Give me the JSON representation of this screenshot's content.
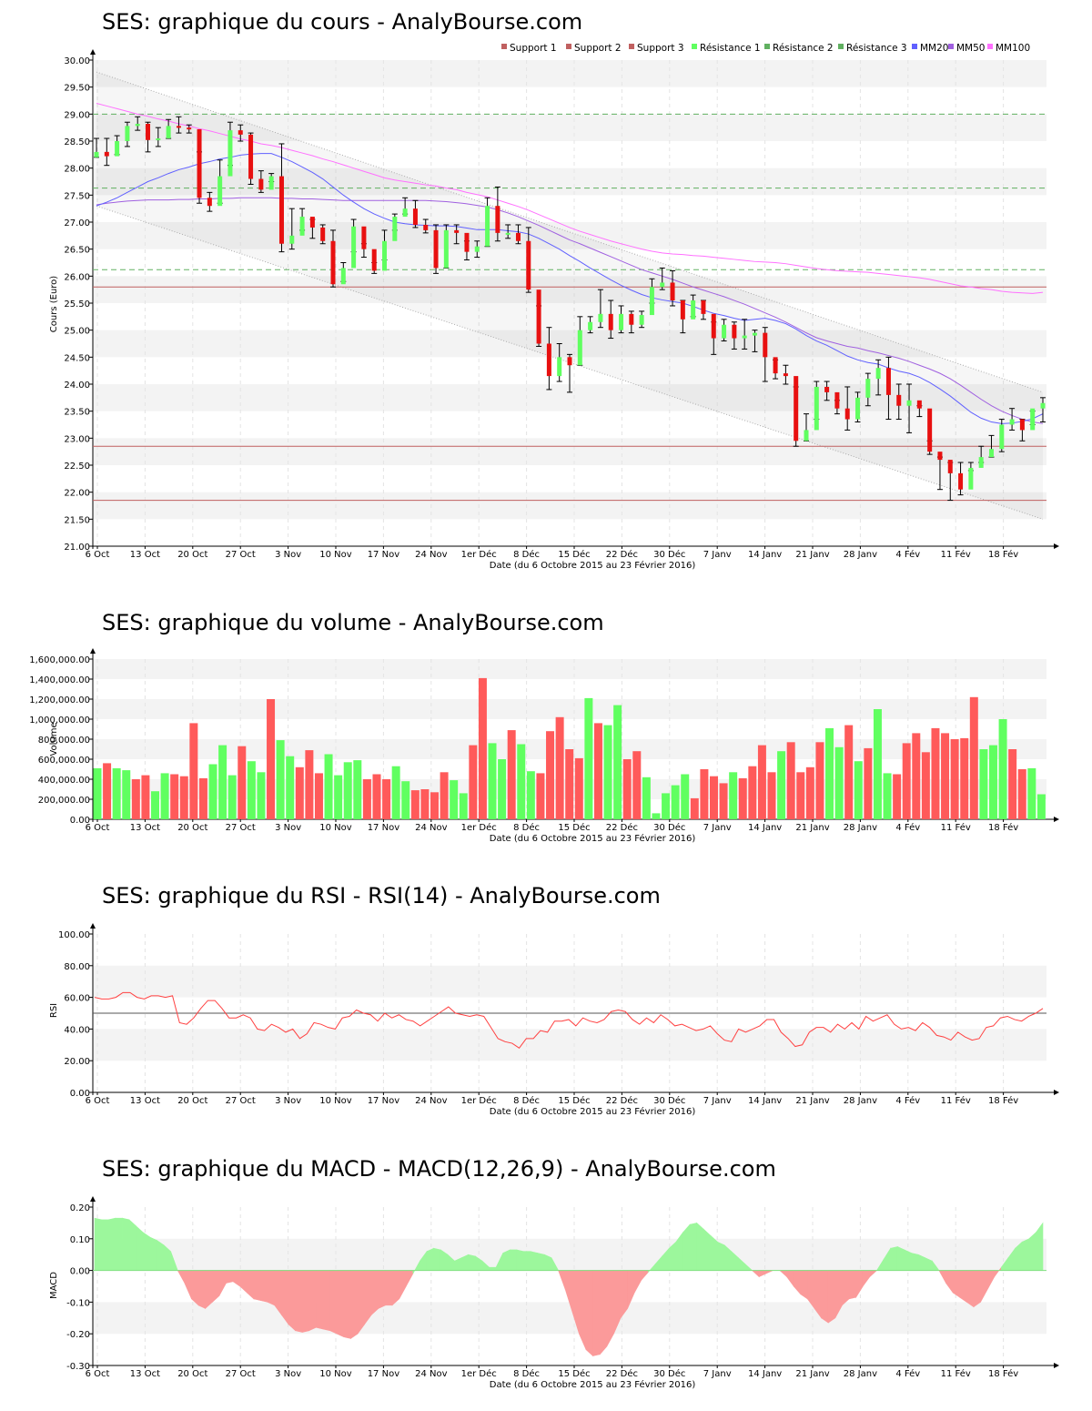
{
  "x_ticks": [
    "6 Oct",
    "13 Oct",
    "20 Oct",
    "27 Oct",
    "3 Nov",
    "10 Nov",
    "17 Nov",
    "24 Nov",
    "1er Déc",
    "8 Déc",
    "15 Déc",
    "22 Déc",
    "30 Déc",
    "7 Janv",
    "14 Janv",
    "21 Janv",
    "28 Janv",
    "4 Fév",
    "11 Fév",
    "18 Fév"
  ],
  "x_label": "Date (du 6 Octobre 2015 au 23 Février 2016)",
  "colors": {
    "up": "#60ff60",
    "down": "#ff5a5a",
    "support": "#c06060",
    "resistance": "#60b060",
    "mm20": "#6060ff",
    "mm50": "#a060e0",
    "mm100": "#ff70ff",
    "rsi": "#ff4040"
  },
  "chart_data": [
    {
      "type": "candlestick",
      "title": "SES: graphique du cours - AnalyBourse.com",
      "ylabel": "Cours (Euro)",
      "ylim": [
        21,
        30
      ],
      "yticks": [
        "21.00",
        "21.50",
        "22.00",
        "22.50",
        "23.00",
        "23.50",
        "24.00",
        "24.50",
        "25.00",
        "25.50",
        "26.00",
        "26.50",
        "27.00",
        "27.50",
        "28.00",
        "28.50",
        "29.00",
        "29.50",
        "30.00"
      ],
      "legend": [
        "Support 1",
        "Support 2",
        "Support 3",
        "Résistance 1",
        "Résistance 2",
        "Résistance 3",
        "MM20",
        "MM50",
        "MM100"
      ],
      "supports": [
        25.8,
        22.85,
        21.85
      ],
      "resistances": [
        29.0,
        27.63,
        26.12
      ],
      "close": [
        28.3,
        28.22,
        28.5,
        28.78,
        28.82,
        28.52,
        28.55,
        28.78,
        28.75,
        28.72,
        27.45,
        27.3,
        27.85,
        28.7,
        28.62,
        27.8,
        27.6,
        27.85,
        26.6,
        26.75,
        27.1,
        26.9,
        26.65,
        25.85,
        26.15,
        26.92,
        26.5,
        26.1,
        26.65,
        27.1,
        27.25,
        26.95,
        26.85,
        26.15,
        26.85,
        26.8,
        26.45,
        26.55,
        27.3,
        26.8,
        26.8,
        26.65,
        25.75,
        24.75,
        24.15,
        24.5,
        24.35,
        25.0,
        25.15,
        25.3,
        25.0,
        25.3,
        25.1,
        25.28,
        25.8,
        25.88,
        25.55,
        25.2,
        25.55,
        25.3,
        24.85,
        25.1,
        24.85,
        24.9,
        24.95,
        24.5,
        24.2,
        24.15,
        22.95,
        23.15,
        23.95,
        23.85,
        23.55,
        23.35,
        23.75,
        24.1,
        24.3,
        23.8,
        23.6,
        23.7,
        23.55,
        22.75,
        22.6,
        22.35,
        22.05,
        22.45,
        22.65,
        22.8,
        23.25,
        23.35,
        23.15,
        23.55,
        23.65
      ],
      "high": [
        28.55,
        28.55,
        28.6,
        28.85,
        28.95,
        28.85,
        28.75,
        28.9,
        28.95,
        28.8,
        28.3,
        27.55,
        28.15,
        28.85,
        28.8,
        28.65,
        27.95,
        27.9,
        28.45,
        27.25,
        27.25,
        27.05,
        26.95,
        26.85,
        26.25,
        27.05,
        26.6,
        26.25,
        26.85,
        27.15,
        27.45,
        27.4,
        27.05,
        26.95,
        26.95,
        26.95,
        26.65,
        26.65,
        27.45,
        27.65,
        26.95,
        26.95,
        26.9,
        25.45,
        25.05,
        24.75,
        24.55,
        25.25,
        25.25,
        25.75,
        25.55,
        25.45,
        25.35,
        25.35,
        25.95,
        26.15,
        26.1,
        25.55,
        25.65,
        25.55,
        25.15,
        25.2,
        25.15,
        25.2,
        25.0,
        25.05,
        24.45,
        24.35,
        23.95,
        23.45,
        24.05,
        24.05,
        23.7,
        23.95,
        23.85,
        24.2,
        24.45,
        24.5,
        24.0,
        24.0,
        23.6,
        22.95,
        22.65,
        22.55,
        22.55,
        22.55,
        22.85,
        23.05,
        23.35,
        23.55,
        23.35,
        23.5,
        23.75
      ],
      "low": [
        28.2,
        28.05,
        28.25,
        28.4,
        28.7,
        28.3,
        28.4,
        28.55,
        28.65,
        28.65,
        27.35,
        27.2,
        27.35,
        28.05,
        28.5,
        27.7,
        27.55,
        27.75,
        26.45,
        26.5,
        26.85,
        26.7,
        26.6,
        25.8,
        25.9,
        26.45,
        26.35,
        26.05,
        26.3,
        26.85,
        27.15,
        26.9,
        26.8,
        26.05,
        26.15,
        26.6,
        26.3,
        26.35,
        26.55,
        26.65,
        26.7,
        26.6,
        25.7,
        24.7,
        23.9,
        24.05,
        23.85,
        24.35,
        24.95,
        25.05,
        24.85,
        24.95,
        24.95,
        25.05,
        25.5,
        25.75,
        25.45,
        24.95,
        25.25,
        25.2,
        24.55,
        24.8,
        24.65,
        24.65,
        24.6,
        24.05,
        24.1,
        24.0,
        22.85,
        22.95,
        23.35,
        23.7,
        23.45,
        23.15,
        23.3,
        23.6,
        23.8,
        23.35,
        23.35,
        23.1,
        23.4,
        22.7,
        22.05,
        21.85,
        21.95,
        22.4,
        22.55,
        22.65,
        22.75,
        23.15,
        22.95,
        23.25,
        23.3
      ],
      "mm20": [
        27.3,
        27.37,
        27.45,
        27.55,
        27.65,
        27.75,
        27.82,
        27.9,
        27.97,
        28.02,
        28.08,
        28.12,
        28.17,
        28.2,
        28.24,
        28.26,
        28.27,
        28.27,
        28.2,
        28.12,
        28.02,
        27.92,
        27.8,
        27.65,
        27.5,
        27.37,
        27.25,
        27.15,
        27.07,
        27.0,
        26.97,
        26.95,
        26.94,
        26.93,
        26.93,
        26.92,
        26.89,
        26.86,
        26.86,
        26.86,
        26.84,
        26.82,
        26.78,
        26.7,
        26.6,
        26.5,
        26.38,
        26.27,
        26.15,
        26.04,
        25.93,
        25.83,
        25.74,
        25.66,
        25.6,
        25.56,
        25.53,
        25.5,
        25.44,
        25.37,
        25.31,
        25.27,
        25.22,
        25.18,
        25.2,
        25.22,
        25.18,
        25.12,
        25.02,
        24.9,
        24.8,
        24.72,
        24.62,
        24.52,
        24.45,
        24.4,
        24.37,
        24.3,
        24.24,
        24.2,
        24.13,
        24.03,
        23.91,
        23.78,
        23.63,
        23.48,
        23.37,
        23.3,
        23.27,
        23.28,
        23.31,
        23.36,
        23.45
      ],
      "mm50": [
        27.32,
        27.35,
        27.37,
        27.39,
        27.4,
        27.41,
        27.41,
        27.41,
        27.42,
        27.42,
        27.43,
        27.43,
        27.44,
        27.44,
        27.45,
        27.45,
        27.45,
        27.45,
        27.44,
        27.44,
        27.43,
        27.43,
        27.42,
        27.41,
        27.4,
        27.4,
        27.4,
        27.4,
        27.4,
        27.4,
        27.4,
        27.4,
        27.4,
        27.39,
        27.38,
        27.36,
        27.34,
        27.31,
        27.28,
        27.23,
        27.17,
        27.1,
        27.02,
        26.94,
        26.85,
        26.76,
        26.67,
        26.6,
        26.52,
        26.44,
        26.36,
        26.28,
        26.2,
        26.12,
        26.06,
        26.0,
        25.94,
        25.87,
        25.8,
        25.74,
        25.68,
        25.62,
        25.55,
        25.48,
        25.4,
        25.32,
        25.24,
        25.15,
        25.05,
        24.95,
        24.86,
        24.8,
        24.75,
        24.7,
        24.67,
        24.62,
        24.58,
        24.53,
        24.48,
        24.42,
        24.35,
        24.28,
        24.2,
        24.1,
        23.98,
        23.85,
        23.72,
        23.6,
        23.5,
        23.42,
        23.35,
        23.3,
        23.27
      ],
      "mm100": [
        29.2,
        29.15,
        29.1,
        29.05,
        29.0,
        28.96,
        28.91,
        28.87,
        28.82,
        28.78,
        28.73,
        28.69,
        28.64,
        28.59,
        28.54,
        28.5,
        28.45,
        28.42,
        28.38,
        28.33,
        28.28,
        28.23,
        28.17,
        28.12,
        28.06,
        28.0,
        27.94,
        27.88,
        27.82,
        27.78,
        27.75,
        27.72,
        27.69,
        27.67,
        27.63,
        27.6,
        27.55,
        27.51,
        27.47,
        27.41,
        27.35,
        27.29,
        27.22,
        27.14,
        27.06,
        26.98,
        26.9,
        26.83,
        26.77,
        26.71,
        26.65,
        26.6,
        26.55,
        26.5,
        26.46,
        26.43,
        26.41,
        26.4,
        26.38,
        26.37,
        26.35,
        26.33,
        26.31,
        26.29,
        26.27,
        26.26,
        26.25,
        26.23,
        26.2,
        26.17,
        26.14,
        26.12,
        26.1,
        26.09,
        26.08,
        26.07,
        26.05,
        26.03,
        26.01,
        25.99,
        25.97,
        25.94,
        25.9,
        25.86,
        25.82,
        25.8,
        25.77,
        25.75,
        25.72,
        25.7,
        25.69,
        25.68,
        25.7
      ]
    },
    {
      "type": "bar",
      "title": "SES: graphique du volume - AnalyBourse.com",
      "ylabel": "Volume",
      "ylim": [
        0,
        1600000
      ],
      "yticks": [
        "0.00",
        "200,000.00",
        "400,000.00",
        "600,000.00",
        "800,000.00",
        "1,000,000.00",
        "1,200,000.00",
        "1,400,000.00",
        "1,600,000.00"
      ],
      "values": [
        510000,
        560000,
        510000,
        490000,
        400000,
        440000,
        280000,
        460000,
        450000,
        430000,
        960000,
        410000,
        550000,
        740000,
        440000,
        730000,
        580000,
        470000,
        1200000,
        790000,
        630000,
        520000,
        690000,
        460000,
        650000,
        440000,
        570000,
        590000,
        400000,
        450000,
        400000,
        530000,
        380000,
        290000,
        300000,
        270000,
        470000,
        390000,
        260000,
        740000,
        1410000,
        760000,
        600000,
        890000,
        750000,
        480000,
        460000,
        880000,
        1020000,
        700000,
        610000,
        1210000,
        960000,
        940000,
        1140000,
        600000,
        680000,
        420000,
        60000,
        260000,
        340000,
        450000,
        210000,
        500000,
        430000,
        360000,
        470000,
        410000,
        530000,
        740000,
        470000,
        680000,
        770000,
        470000,
        520000,
        770000,
        910000,
        720000,
        940000,
        580000,
        710000,
        1100000,
        460000,
        450000,
        760000,
        860000,
        670000,
        910000,
        860000,
        800000,
        810000,
        1220000,
        700000,
        740000,
        1000000,
        700000,
        500000,
        510000,
        250000
      ],
      "colors": [
        "u",
        "d",
        "u",
        "u",
        "d",
        "d",
        "u",
        "u",
        "d",
        "d",
        "d",
        "d",
        "u",
        "u",
        "u",
        "d",
        "u",
        "u",
        "d",
        "u",
        "u",
        "d",
        "d",
        "d",
        "u",
        "u",
        "u",
        "u",
        "d",
        "d",
        "d",
        "u",
        "u",
        "d",
        "d",
        "d",
        "d",
        "u",
        "u",
        "d",
        "d",
        "u",
        "u",
        "d",
        "u",
        "u",
        "d",
        "d",
        "d",
        "d",
        "d",
        "u",
        "d",
        "u",
        "u",
        "d",
        "d",
        "u",
        "u",
        "u",
        "u",
        "u",
        "d",
        "d",
        "d",
        "d",
        "u",
        "d",
        "d",
        "d",
        "d",
        "u",
        "d",
        "d",
        "d",
        "d",
        "u",
        "u",
        "d",
        "u",
        "d",
        "u",
        "u",
        "d",
        "d",
        "d",
        "d",
        "d",
        "d",
        "d",
        "d",
        "d",
        "u",
        "u",
        "u",
        "d",
        "d",
        "u",
        "u"
      ]
    },
    {
      "type": "line",
      "title": "SES: graphique du RSI - RSI(14) - AnalyBourse.com",
      "ylabel": "RSI",
      "ylim": [
        0,
        100
      ],
      "yticks": [
        "0.00",
        "20.00",
        "40.00",
        "60.00",
        "80.00",
        "100.00"
      ],
      "reference": 50,
      "values": [
        60,
        59,
        59,
        60,
        63,
        63,
        60,
        59,
        61,
        61,
        60,
        61,
        44,
        43,
        47,
        53,
        58,
        58,
        53,
        47,
        47,
        49,
        47,
        40,
        39,
        43,
        41,
        38,
        40,
        34,
        37,
        44,
        43,
        41,
        40,
        47,
        48,
        52,
        50,
        49,
        45,
        50,
        47,
        49,
        46,
        45,
        42,
        45,
        48,
        51,
        54,
        50,
        49,
        48,
        49,
        48,
        41,
        34,
        32,
        31,
        28,
        34,
        34,
        39,
        38,
        45,
        45,
        46,
        42,
        47,
        45,
        44,
        46,
        51,
        52,
        51,
        46,
        43,
        47,
        44,
        49,
        46,
        42,
        43,
        41,
        39,
        40,
        42,
        37,
        33,
        32,
        40,
        38,
        40,
        42,
        46,
        46,
        38,
        34,
        29,
        30,
        38,
        41,
        41,
        38,
        43,
        40,
        44,
        40,
        48,
        45,
        47,
        49,
        43,
        40,
        41,
        39,
        44,
        41,
        36,
        35,
        33,
        38,
        35,
        33,
        34,
        41,
        42,
        47,
        48,
        46,
        45,
        48,
        50,
        53
      ]
    },
    {
      "type": "area",
      "title": "SES: graphique du MACD - MACD(12,26,9) - AnalyBourse.com",
      "ylabel": "MACD",
      "ylim": [
        -0.3,
        0.2
      ],
      "yticks": [
        "-0.30",
        "-0.20",
        "-0.10",
        "0.00",
        "0.10",
        "0.20"
      ],
      "values": [
        0.165,
        0.16,
        0.16,
        0.165,
        0.165,
        0.16,
        0.14,
        0.12,
        0.105,
        0.095,
        0.08,
        0.06,
        0.0,
        -0.04,
        -0.09,
        -0.11,
        -0.12,
        -0.1,
        -0.08,
        -0.04,
        -0.035,
        -0.05,
        -0.07,
        -0.09,
        -0.095,
        -0.1,
        -0.11,
        -0.14,
        -0.17,
        -0.19,
        -0.195,
        -0.19,
        -0.18,
        -0.185,
        -0.19,
        -0.2,
        -0.21,
        -0.215,
        -0.2,
        -0.17,
        -0.14,
        -0.12,
        -0.11,
        -0.11,
        -0.09,
        -0.05,
        -0.01,
        0.03,
        0.06,
        0.07,
        0.065,
        0.05,
        0.03,
        0.04,
        0.05,
        0.045,
        0.03,
        0.01,
        0.01,
        0.055,
        0.065,
        0.065,
        0.06,
        0.06,
        0.055,
        0.05,
        0.04,
        0.0,
        -0.06,
        -0.13,
        -0.2,
        -0.25,
        -0.27,
        -0.265,
        -0.24,
        -0.2,
        -0.15,
        -0.12,
        -0.07,
        -0.03,
        -0.005,
        0.02,
        0.045,
        0.07,
        0.09,
        0.12,
        0.145,
        0.15,
        0.13,
        0.11,
        0.09,
        0.08,
        0.06,
        0.04,
        0.02,
        0.0,
        -0.02,
        -0.01,
        0.0,
        0.0,
        -0.02,
        -0.05,
        -0.075,
        -0.09,
        -0.12,
        -0.15,
        -0.165,
        -0.15,
        -0.11,
        -0.09,
        -0.085,
        -0.05,
        -0.02,
        0.0,
        0.035,
        0.07,
        0.075,
        0.065,
        0.055,
        0.05,
        0.04,
        0.03,
        0.0,
        -0.04,
        -0.07,
        -0.085,
        -0.1,
        -0.115,
        -0.1,
        -0.06,
        -0.02,
        0.01,
        0.04,
        0.07,
        0.09,
        0.1,
        0.12,
        0.15
      ]
    }
  ]
}
